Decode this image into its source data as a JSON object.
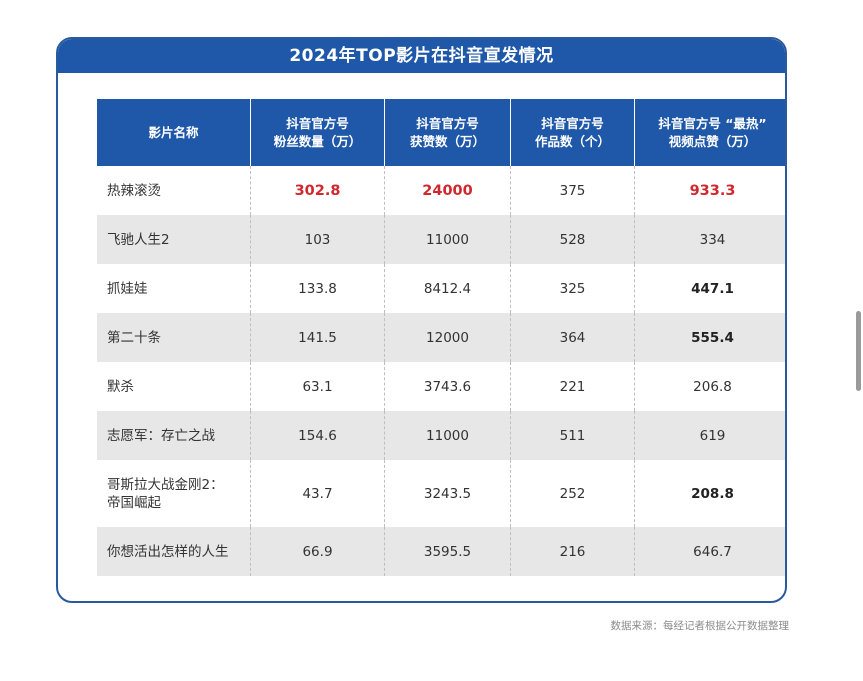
{
  "title": "2024年TOP影片在抖音宣发情况",
  "headers": [
    [
      "影片名称"
    ],
    [
      "抖音官方号",
      "粉丝数量（万）"
    ],
    [
      "抖音官方号",
      "获赞数（万）"
    ],
    [
      "抖音官方号",
      "作品数（个）"
    ],
    [
      "抖音官方号 “最热”",
      "视频点赞（万）"
    ]
  ],
  "rows": [
    {
      "name": [
        "热辣滚烫"
      ],
      "fans": "302.8",
      "likes": "24000",
      "works": "375",
      "top": "933.3"
    },
    {
      "name": [
        "飞驰人生2"
      ],
      "fans": "103",
      "likes": "11000",
      "works": "528",
      "top": "334"
    },
    {
      "name": [
        "抓娃娃"
      ],
      "fans": "133.8",
      "likes": "8412.4",
      "works": "325",
      "top": "447.1"
    },
    {
      "name": [
        "第二十条"
      ],
      "fans": "141.5",
      "likes": "12000",
      "works": "364",
      "top": "555.4"
    },
    {
      "name": [
        "默杀"
      ],
      "fans": "63.1",
      "likes": "3743.6",
      "works": "221",
      "top": "206.8"
    },
    {
      "name": [
        "志愿军：存亡之战"
      ],
      "fans": "154.6",
      "likes": "11000",
      "works": "511",
      "top": "619"
    },
    {
      "name": [
        "哥斯拉大战金刚2：",
        "帝国崛起"
      ],
      "fans": "43.7",
      "likes": "3243.5",
      "works": "252",
      "top": "208.8"
    },
    {
      "name": [
        "你想活出怎样的人生"
      ],
      "fans": "66.9",
      "likes": "3595.5",
      "works": "216",
      "top": "646.7"
    }
  ],
  "highlight_color": "#d0282e",
  "header_color": "#1f58a8",
  "source": "数据来源：每经记者根据公开数据整理"
}
